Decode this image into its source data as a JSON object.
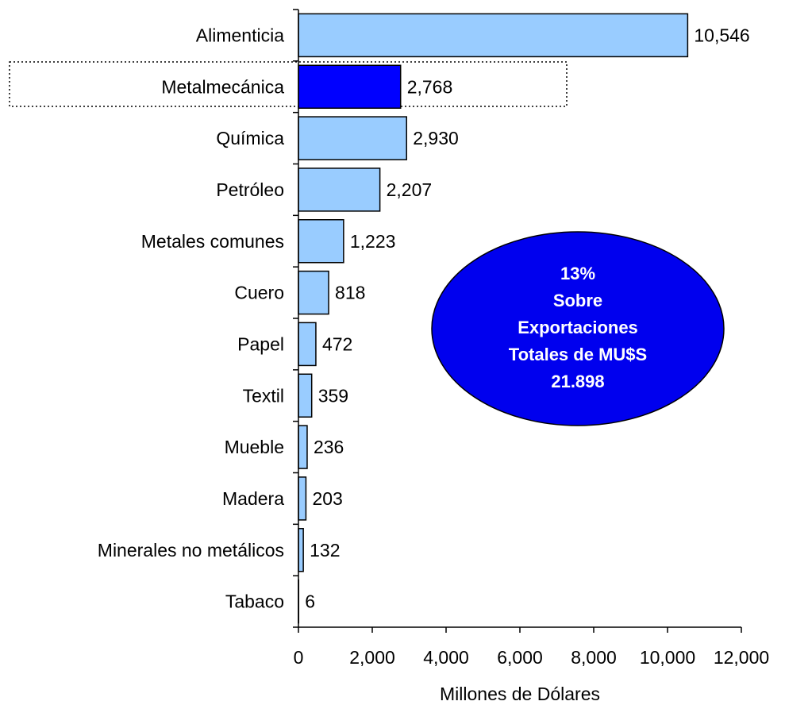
{
  "chart_data": {
    "type": "bar",
    "orientation": "horizontal",
    "categories": [
      "Alimenticia",
      "Metalmecánica",
      "Química",
      "Petróleo",
      "Metales comunes",
      "Cuero",
      "Papel",
      "Textil",
      "Mueble",
      "Madera",
      "Minerales no metálicos",
      "Tabaco"
    ],
    "values": [
      10546,
      2768,
      2930,
      2207,
      1223,
      818,
      472,
      359,
      236,
      203,
      132,
      6
    ],
    "value_labels": [
      "10,546",
      "2,768",
      "2,930",
      "2,207",
      "1,223",
      "818",
      "472",
      "359",
      "236",
      "203",
      "132",
      "6"
    ],
    "colors": [
      "#99ccff",
      "#0000ff",
      "#99ccff",
      "#99ccff",
      "#99ccff",
      "#99ccff",
      "#99ccff",
      "#99ccff",
      "#99ccff",
      "#99ccff",
      "#99ccff",
      "#99ccff"
    ],
    "xlim": [
      0,
      12000
    ],
    "xticks": [
      0,
      {
        "value": 2000,
        "label": "2,000"
      },
      {
        "value": 4000,
        "label": "4,000"
      },
      {
        "value": 6000,
        "label": "6,000"
      },
      {
        "value": 8000,
        "label": "8,000"
      },
      {
        "value": 10000,
        "label": "10,000"
      },
      {
        "value": 12000,
        "label": "12,000"
      }
    ],
    "xlabel": "Millones de Dólares",
    "annotation": [
      "13%",
      "Sobre",
      "Exportaciones",
      "Totales de MU$S",
      "21.898"
    ]
  }
}
